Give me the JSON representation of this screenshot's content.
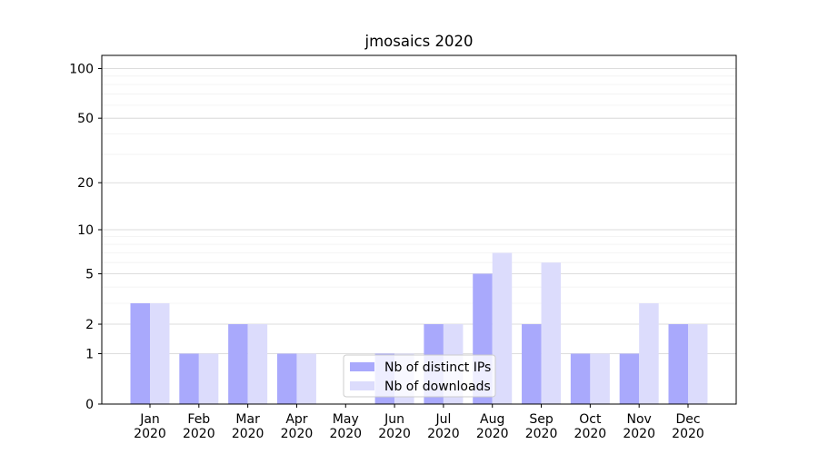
{
  "chart_data": {
    "type": "bar",
    "title": "jmosaics 2020",
    "xlabel": "",
    "ylabel": "",
    "yscale": "log1p",
    "ylim": [
      0,
      120
    ],
    "yticks": [
      0,
      1,
      2,
      5,
      10,
      20,
      50,
      100
    ],
    "grid": "horizontal",
    "legend_position": "bottom-center",
    "categories": [
      [
        "Jan",
        "2020"
      ],
      [
        "Feb",
        "2020"
      ],
      [
        "Mar",
        "2020"
      ],
      [
        "Apr",
        "2020"
      ],
      [
        "May",
        "2020"
      ],
      [
        "Jun",
        "2020"
      ],
      [
        "Jul",
        "2020"
      ],
      [
        "Aug",
        "2020"
      ],
      [
        "Sep",
        "2020"
      ],
      [
        "Oct",
        "2020"
      ],
      [
        "Nov",
        "2020"
      ],
      [
        "Dec",
        "2020"
      ]
    ],
    "series": [
      {
        "name": "Nb of distinct IPs",
        "color": "#a9a9fc",
        "values": [
          3,
          1,
          2,
          1,
          0,
          1,
          2,
          5,
          2,
          1,
          1,
          2
        ]
      },
      {
        "name": "Nb of downloads",
        "color": "#dcdcfc",
        "values": [
          3,
          1,
          2,
          1,
          0,
          1,
          2,
          7,
          6,
          1,
          3,
          2
        ]
      }
    ]
  }
}
